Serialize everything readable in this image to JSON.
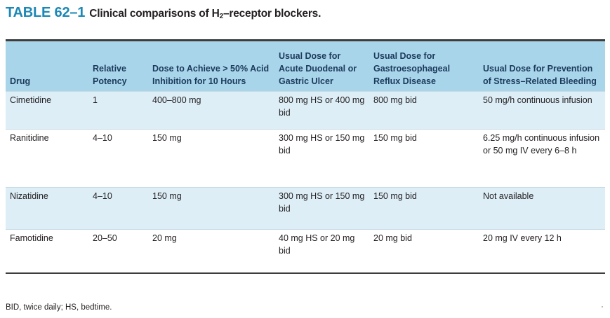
{
  "title": {
    "number": "TABLE 62–1",
    "caption_pre": "Clinical comparisons of H",
    "caption_sub": "2",
    "caption_post": "–receptor blockers."
  },
  "table": {
    "headers": [
      "Drug",
      "Relative Potency",
      "Dose to Achieve > 50% Acid Inhibition for 10 Hours",
      "Usual Dose for Acute Duodenal or Gastric Ulcer",
      "Usual Dose for Gastroesophageal Reflux Disease",
      "Usual Dose for Prevention of Stress–Related Bleeding"
    ],
    "rows": [
      [
        "Cimetidine",
        "1",
        "400–800 mg",
        "800 mg HS or 400 mg bid",
        "800 mg bid",
        "50 mg/h continuous infusion"
      ],
      [
        "Ranitidine",
        "4–10",
        "150 mg",
        "300 mg HS or 150 mg bid",
        "150 mg bid",
        "6.25 mg/h continuous infusion or 50 mg IV every 6–8 h"
      ],
      [
        "Nizatidine",
        "4–10",
        "150 mg",
        "300 mg HS or 150 mg bid",
        "150 mg bid",
        "Not available"
      ],
      [
        "Famotidine",
        "20–50",
        "20 mg",
        "40 mg HS or 20 mg bid",
        "20 mg bid",
        "20 mg IV every 12 h"
      ]
    ]
  },
  "footnote": "BID, twice daily; HS, bedtime."
}
